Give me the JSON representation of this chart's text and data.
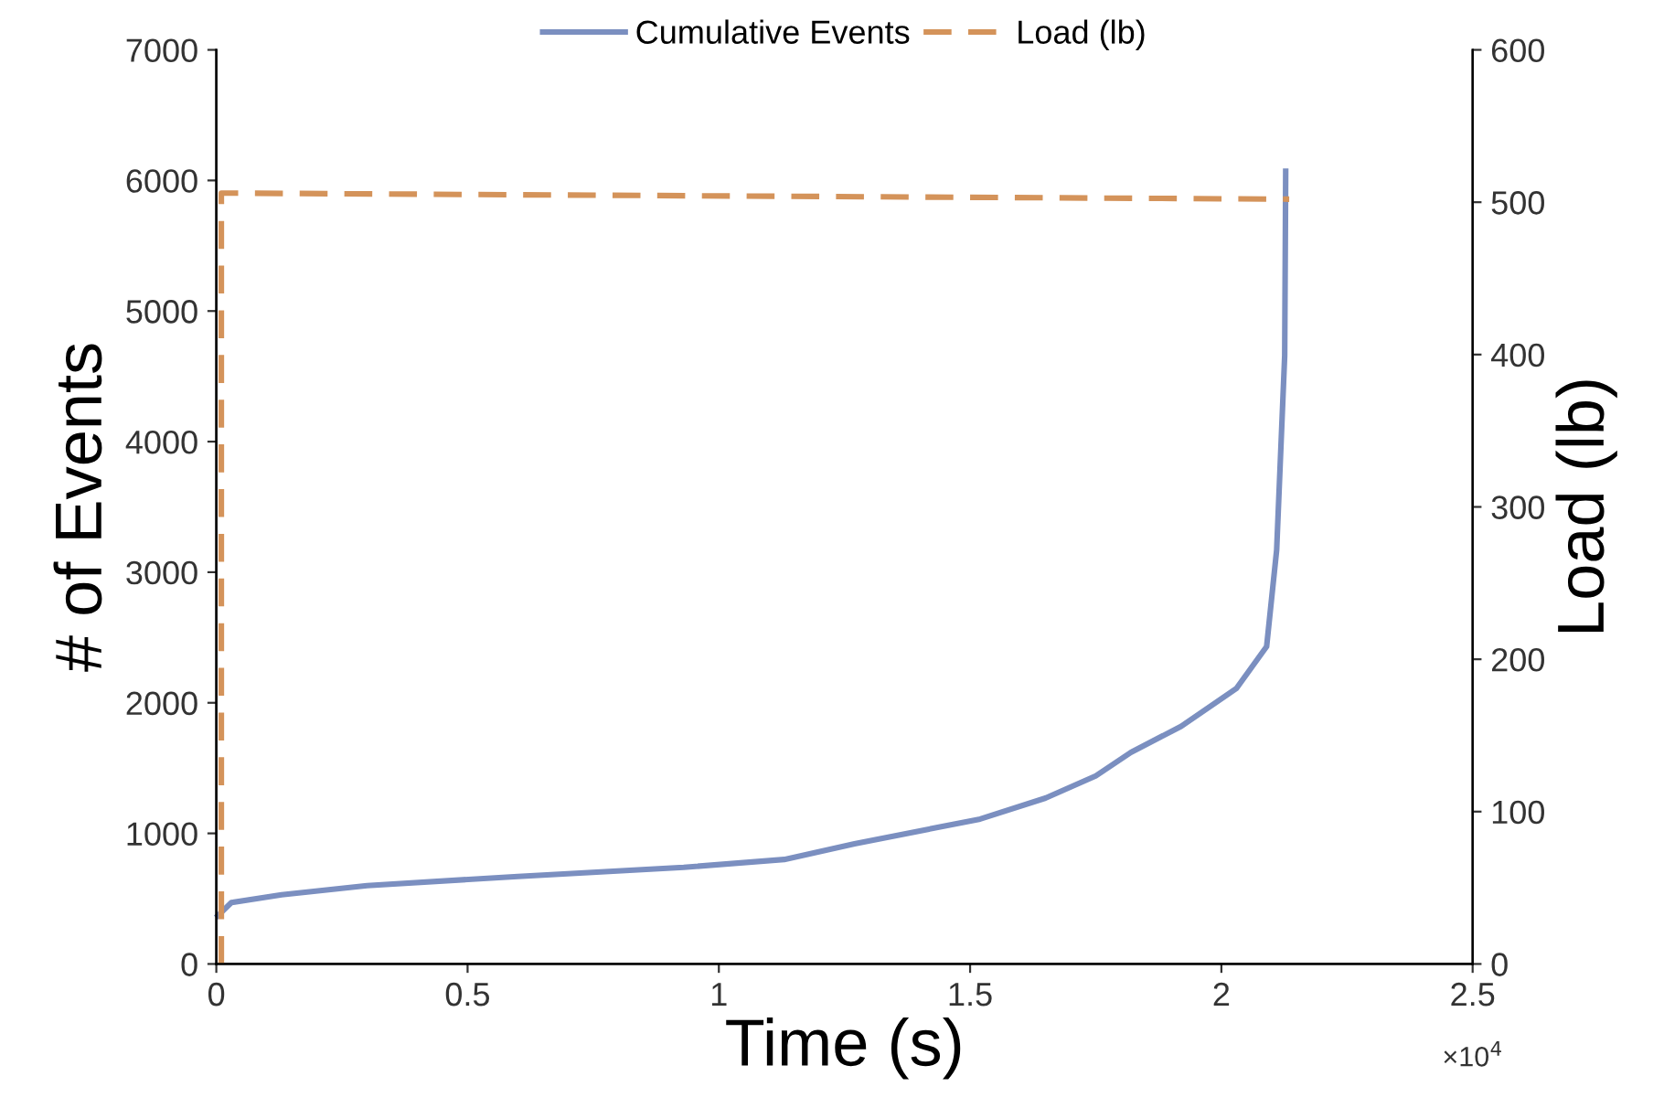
{
  "chart_data": {
    "type": "line",
    "xlabel": "Time (s)",
    "ylabel": "# of Events",
    "y2label": "Load (lb)",
    "xlim": [
      0,
      2.5
    ],
    "xticks": [
      0,
      0.5,
      1,
      1.5,
      2,
      2.5
    ],
    "ylim": [
      0,
      7000
    ],
    "yticks": [
      0,
      1000,
      2000,
      3000,
      4000,
      5000,
      6000,
      7000
    ],
    "y2lim": [
      0,
      600
    ],
    "y2ticks": [
      0,
      100,
      200,
      300,
      400,
      500,
      600
    ],
    "annotations": [
      "×10$^{4}$"
    ],
    "legend": "top",
    "grid": false,
    "series": [
      {
        "name": "Cumulative Events",
        "color": "#7b8fc0",
        "line_style": "solid",
        "x": [
          0.003,
          0.03,
          0.13,
          0.3,
          0.6,
          0.93,
          1.13,
          1.27,
          1.52,
          1.65,
          1.75,
          1.82,
          1.92,
          2.03,
          2.09,
          2.11,
          2.126,
          2.128
        ],
        "values": [
          370,
          470,
          530,
          600,
          670,
          740,
          800,
          920,
          1110,
          1270,
          1440,
          1620,
          1820,
          2110,
          2430,
          3170,
          4660,
          6070
        ]
      },
      {
        "name": "Load (lb)",
        "color": "#d4935a",
        "line_style": "dashed",
        "axis": "y2",
        "x": [
          0.01,
          0.01,
          2.135
        ],
        "values": [
          0,
          506,
          502
        ]
      }
    ]
  }
}
